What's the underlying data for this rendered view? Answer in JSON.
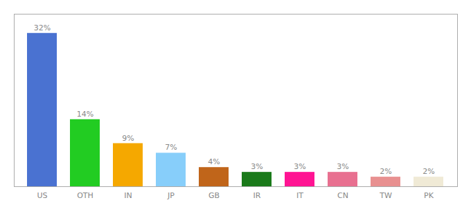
{
  "chart_data": {
    "type": "bar",
    "categories": [
      "US",
      "OTH",
      "IN",
      "JP",
      "GB",
      "IR",
      "IT",
      "CN",
      "TW",
      "PK"
    ],
    "values": [
      32,
      14,
      9,
      7,
      4,
      3,
      3,
      3,
      2,
      2
    ],
    "value_labels": [
      "32%",
      "14%",
      "9%",
      "7%",
      "4%",
      "3%",
      "3%",
      "3%",
      "2%",
      "2%"
    ],
    "colors": [
      "#4a72d1",
      "#22cc22",
      "#f5a800",
      "#87cefa",
      "#c0651a",
      "#1a7a1a",
      "#ff1493",
      "#e87090",
      "#e89090",
      "#f0ead6"
    ],
    "ylim": [
      0,
      36
    ],
    "grid": false,
    "data_labels": true,
    "tick_labels": "x"
  }
}
